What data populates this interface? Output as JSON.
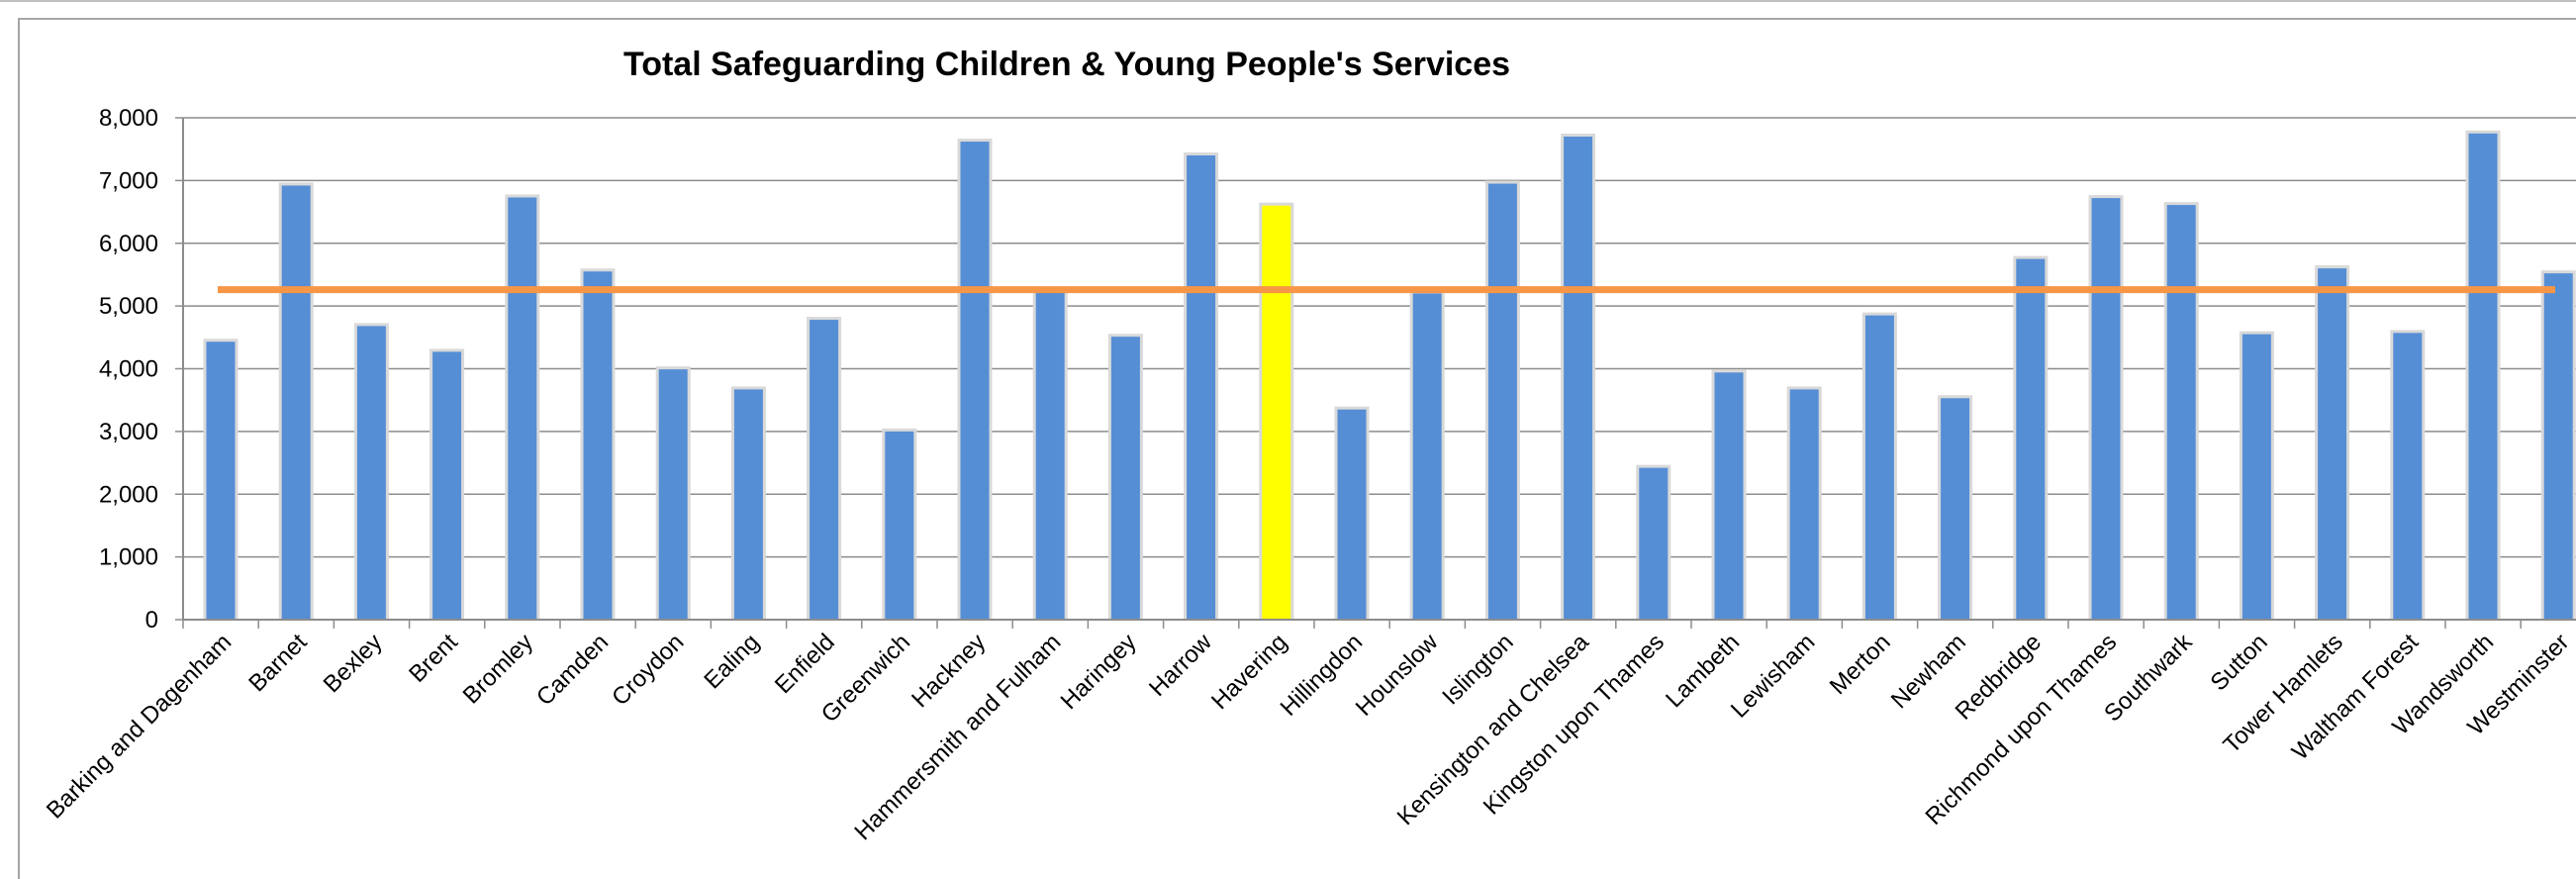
{
  "chart_data": {
    "type": "bar",
    "title": "Total Safeguarding Children & Young People's Services",
    "xlabel": "",
    "ylabel": "",
    "ylim": [
      0,
      8000
    ],
    "y_ticks": [
      "0",
      "1,000",
      "2,000",
      "3,000",
      "4,000",
      "5,000",
      "6,000",
      "7,000",
      "8,000"
    ],
    "y_tick_values": [
      0,
      1000,
      2000,
      3000,
      4000,
      5000,
      6000,
      7000,
      8000
    ],
    "grid": true,
    "legend": "none",
    "categories": [
      "Barking and Dagenham",
      "Barnet",
      "Bexley",
      "Brent",
      "Bromley",
      "Camden",
      "Croydon",
      "Ealing",
      "Enfield",
      "Greenwich",
      "Hackney",
      "Hammersmith and Fulham",
      "Haringey",
      "Harrow",
      "Havering",
      "Hillingdon",
      "Hounslow",
      "Islington",
      "Kensington and Chelsea",
      "Kingston upon Thames",
      "Lambeth",
      "Lewisham",
      "Merton",
      "Newham",
      "Redbridge",
      "Richmond upon Thames",
      "Southwark",
      "Sutton",
      "Tower Hamlets",
      "Waltham Forest",
      "Wandsworth",
      "Westminster"
    ],
    "values": [
      4430,
      6920,
      4680,
      4270,
      6730,
      5550,
      3990,
      3670,
      4780,
      3000,
      7620,
      5250,
      4510,
      7400,
      6600,
      3350,
      5200,
      6950,
      7700,
      2420,
      3940,
      3670,
      4850,
      3530,
      5750,
      6720,
      6610,
      4550,
      5600,
      4570,
      7750,
      5520
    ],
    "highlight_category": "Havering",
    "average_line": 5260,
    "colors": {
      "bar": "#558ed5",
      "highlight": "#ffff00",
      "average_line": "#f79646",
      "gridline": "#8c8c8c",
      "bar_shadow": "#d9d9d9"
    }
  }
}
